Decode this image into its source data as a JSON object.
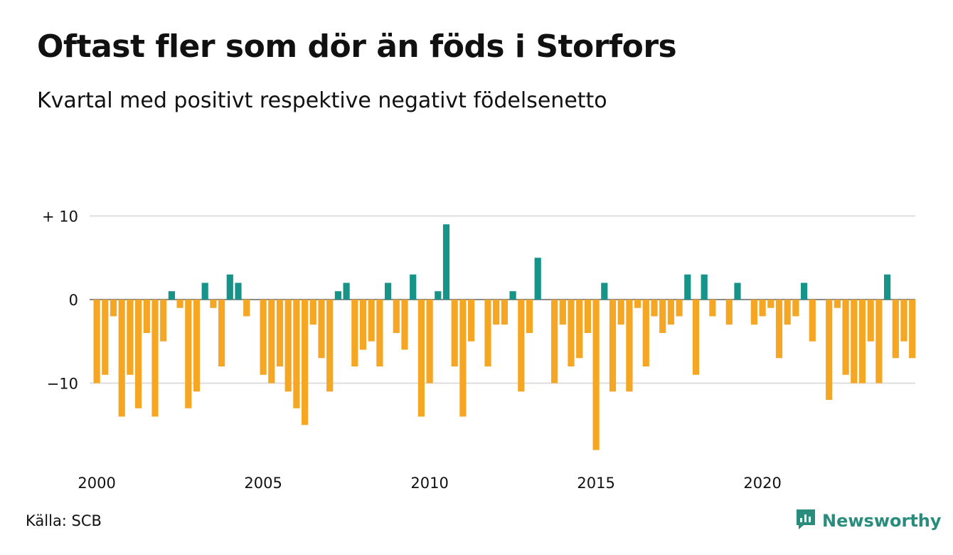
{
  "title": "Oftast fler som dör än föds i Storfors",
  "subtitle": "Kvartal med positivt respektive negativt födelsenetto",
  "source": "Källa: SCB",
  "brand": "Newsworthy",
  "colors": {
    "positive": "#17948a",
    "negative": "#f5a623",
    "grid": "#dddddd"
  },
  "chart_data": {
    "type": "bar",
    "title": "Oftast fler som dör än föds i Storfors",
    "subtitle": "Kvartal med positivt respektive negativt födelsenetto",
    "x_start": "2000 Q1",
    "x_tick_labels": [
      "2000",
      "2005",
      "2010",
      "2015",
      "2020"
    ],
    "y_tick_labels": [
      "+ 10",
      "0",
      "−10"
    ],
    "y_ticks": [
      10,
      0,
      -10
    ],
    "ylim": [
      -18,
      10
    ],
    "grid": true,
    "values": [
      -10,
      -9,
      -2,
      -14,
      -9,
      -13,
      -4,
      -14,
      -5,
      1,
      -1,
      -13,
      -11,
      2,
      -1,
      -8,
      3,
      2,
      -2,
      0,
      -9,
      -10,
      -8,
      -11,
      -13,
      -15,
      -3,
      -7,
      -11,
      1,
      2,
      -8,
      -6,
      -5,
      -8,
      2,
      -4,
      -6,
      3,
      -14,
      -10,
      1,
      9,
      -8,
      -14,
      -5,
      0,
      -8,
      -3,
      -3,
      1,
      -11,
      -4,
      5,
      0,
      -10,
      -3,
      -8,
      -7,
      -4,
      -18,
      2,
      -11,
      -3,
      -11,
      -1,
      -8,
      -2,
      -4,
      -3,
      -2,
      3,
      -9,
      3,
      -2,
      0,
      -3,
      2,
      0,
      -3,
      -2,
      -1,
      -7,
      -3,
      -2,
      2,
      -5,
      0,
      -12,
      -1,
      -9,
      -10,
      -10,
      -5,
      -10,
      3,
      -7,
      -5,
      -7
    ]
  }
}
